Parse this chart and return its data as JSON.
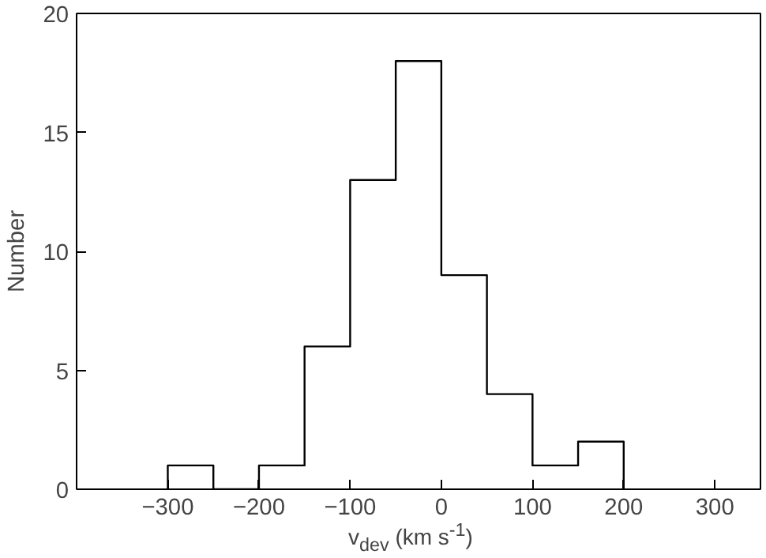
{
  "chart_data": {
    "type": "histogram",
    "xlabel": "v$_{dev}$ (km s$^{-1}$)",
    "ylabel": "Number",
    "bins": [
      -300,
      -250,
      -200,
      -150,
      -100,
      -50,
      0,
      50,
      100,
      150,
      200
    ],
    "values": [
      1,
      0,
      1,
      6,
      13,
      18,
      9,
      4,
      1,
      2
    ],
    "color": "#000000",
    "xlim": [
      -400,
      350
    ],
    "xticks": [
      -300,
      -200,
      -100,
      0,
      100,
      200,
      300
    ],
    "ylim": [
      0,
      20
    ],
    "yticks": [
      0,
      5,
      10,
      15,
      20
    ],
    "grid": false
  }
}
